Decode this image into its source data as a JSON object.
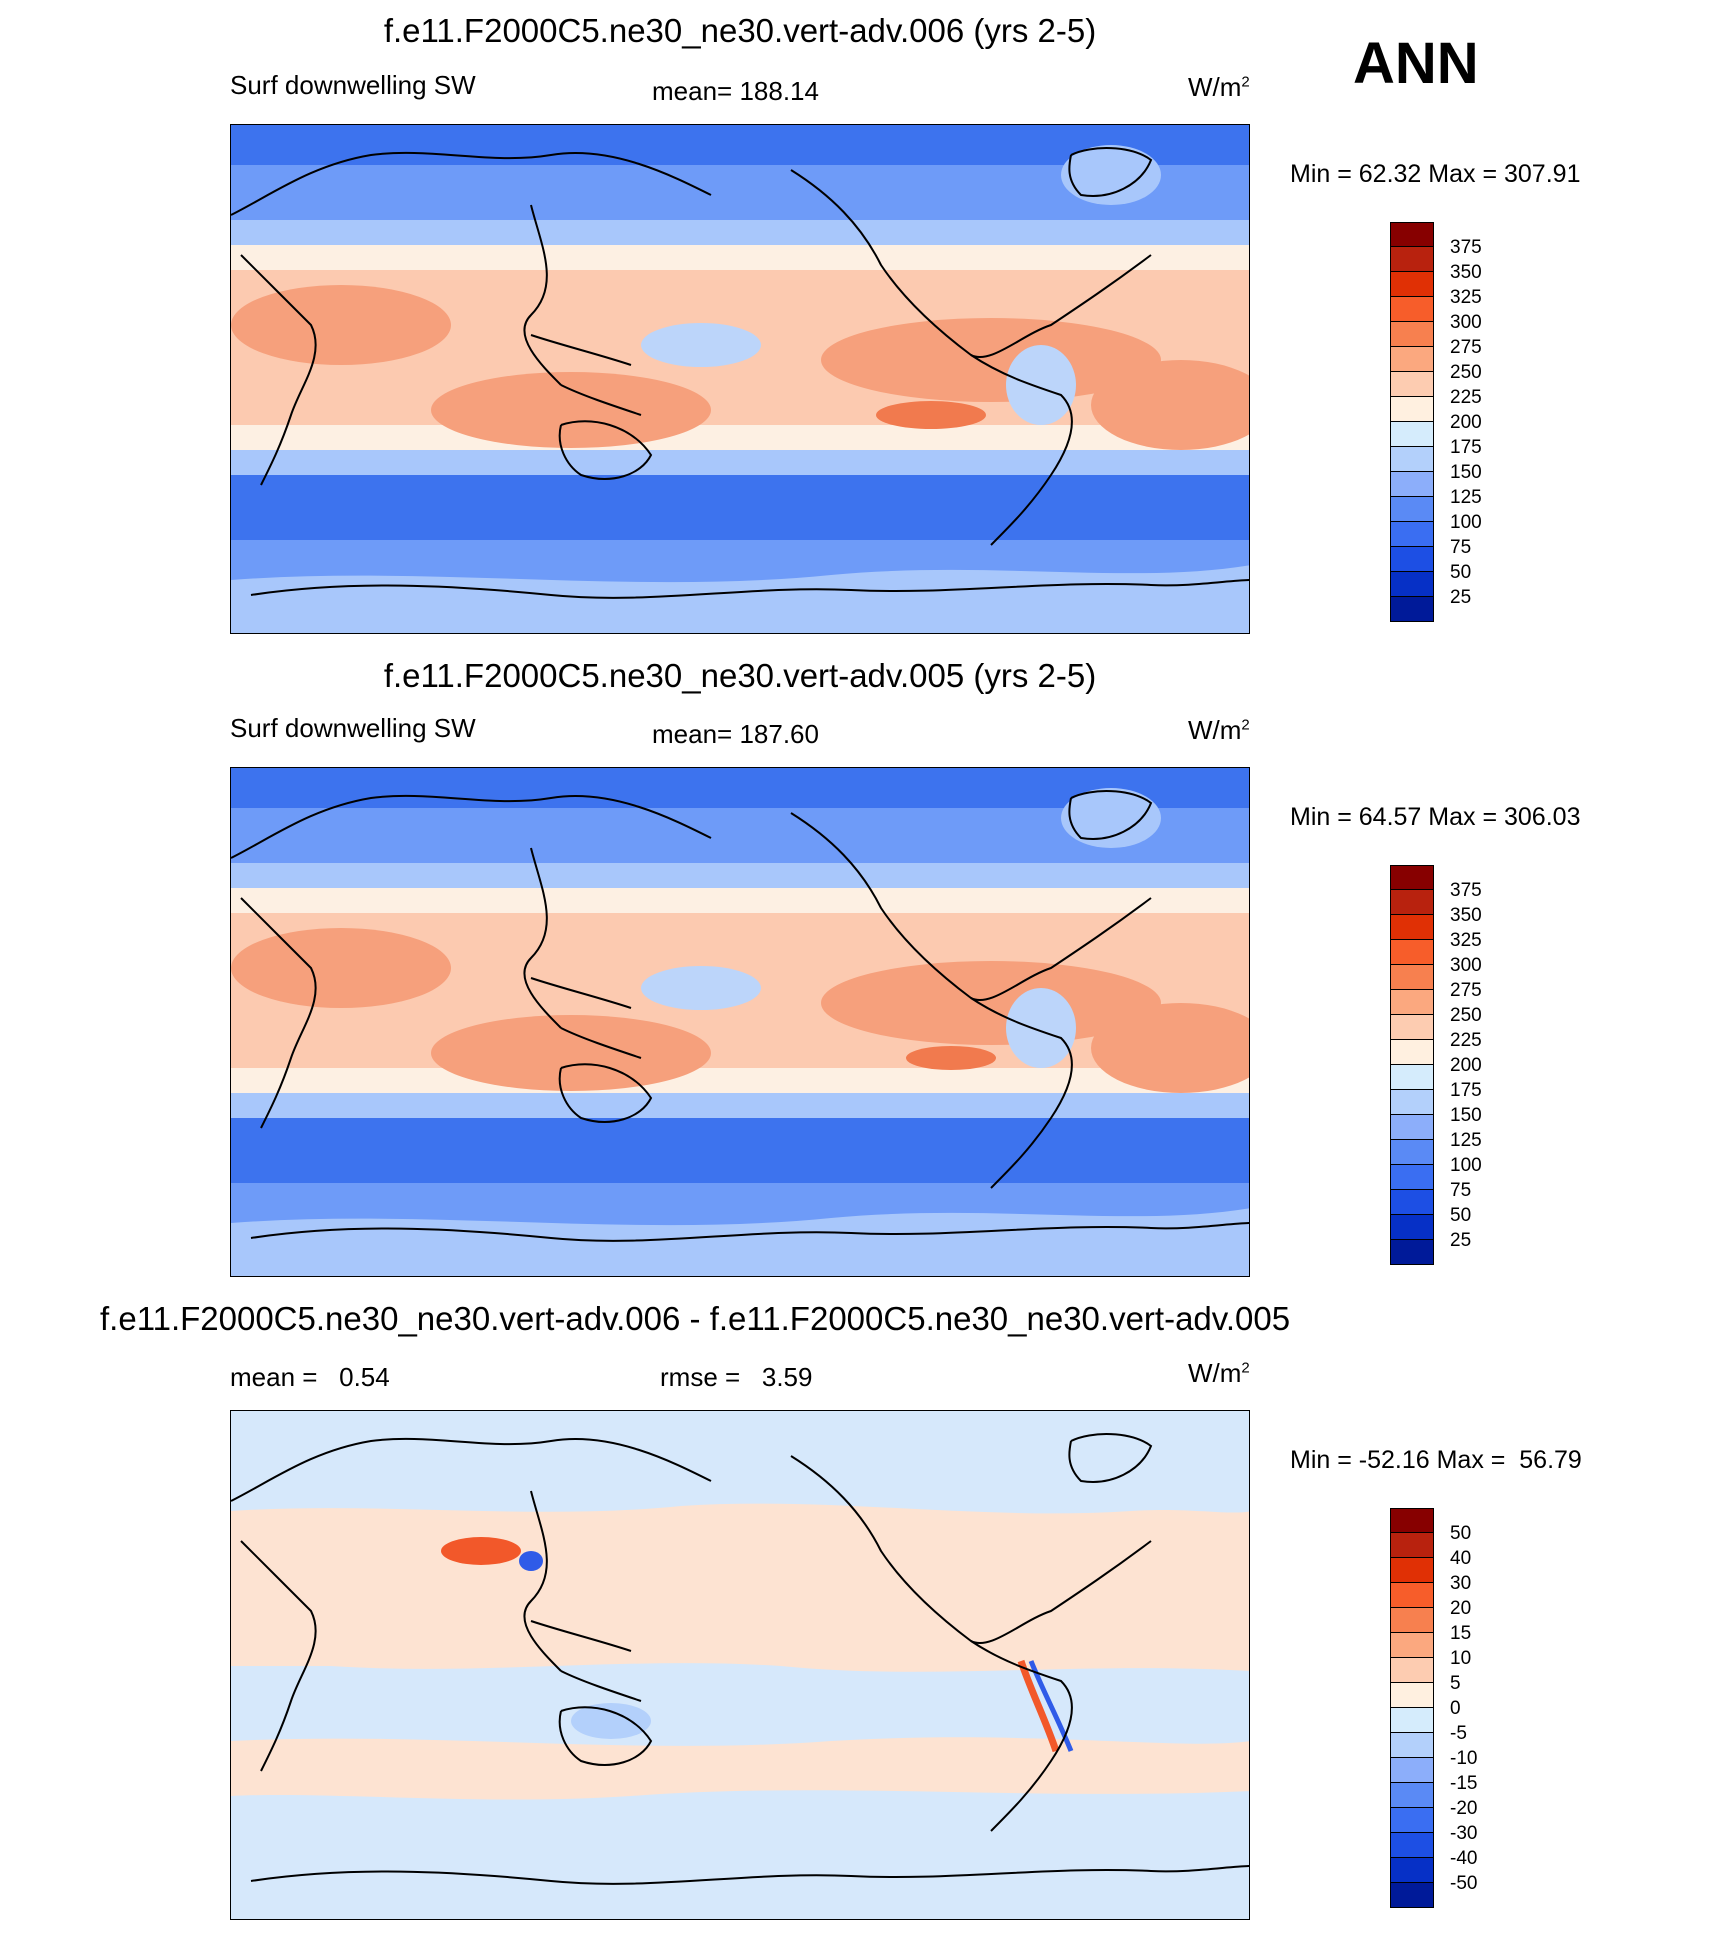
{
  "season": "ANN",
  "panels": [
    {
      "id": "top",
      "title": "f.e11.F2000C5.ne30_ne30.vert-adv.006 (yrs 2-5)",
      "left_label": "Surf downwelling SW",
      "center_label": "mean= 188.14",
      "unit": "W/m",
      "unit_sup": "2",
      "minmax": "Min =  62.32 Max = 307.91",
      "colorbar": {
        "labels": [
          "375",
          "350",
          "325",
          "300",
          "275",
          "250",
          "225",
          "200",
          "175",
          "150",
          "125",
          "100",
          "75",
          "50",
          "25"
        ],
        "colors": [
          "#870000",
          "#b8220e",
          "#e03005",
          "#f75d2a",
          "#f7804f",
          "#fba87f",
          "#fdccb1",
          "#fff0e0",
          "#d5ecfc",
          "#b3d0fb",
          "#8caefa",
          "#5a8af5",
          "#3a6ef2",
          "#1d4fe4",
          "#0630c6",
          "#001a99"
        ]
      },
      "map_colors": {
        "polar": "#3d73ee",
        "midlat": "#6e9bf8",
        "subpolar": "#a8c7fb",
        "transition": "#fdf0e3",
        "subtropic": "#fccab0",
        "tropic_high": "#f6a07c",
        "peak": "#f17a4e",
        "land_low": "#bcd5fa"
      }
    },
    {
      "id": "middle",
      "title": "f.e11.F2000C5.ne30_ne30.vert-adv.005 (yrs 2-5)",
      "left_label": "Surf downwelling SW",
      "center_label": "mean= 187.60",
      "unit": "W/m",
      "unit_sup": "2",
      "minmax": "Min =  64.57 Max = 306.03",
      "colorbar": {
        "labels": [
          "375",
          "350",
          "325",
          "300",
          "275",
          "250",
          "225",
          "200",
          "175",
          "150",
          "125",
          "100",
          "75",
          "50",
          "25"
        ],
        "colors": [
          "#870000",
          "#b8220e",
          "#e03005",
          "#f75d2a",
          "#f7804f",
          "#fba87f",
          "#fdccb1",
          "#fff0e0",
          "#d5ecfc",
          "#b3d0fb",
          "#8caefa",
          "#5a8af5",
          "#3a6ef2",
          "#1d4fe4",
          "#0630c6",
          "#001a99"
        ]
      },
      "map_colors": {
        "polar": "#3d73ee",
        "midlat": "#6e9bf8",
        "subpolar": "#a8c7fb",
        "transition": "#fdf0e3",
        "subtropic": "#fccab0",
        "tropic_high": "#f6a07c",
        "peak": "#f17a4e",
        "land_low": "#bcd5fa"
      }
    },
    {
      "id": "bottom",
      "title": "f.e11.F2000C5.ne30_ne30.vert-adv.006 - f.e11.F2000C5.ne30_ne30.vert-adv.005",
      "left_label": "mean =   0.54",
      "center_label": "rmse =   3.59",
      "unit": "W/m",
      "unit_sup": "2",
      "minmax": "Min = -52.16 Max =  56.79",
      "colorbar": {
        "labels": [
          "50",
          "40",
          "30",
          "20",
          "15",
          "10",
          "5",
          "0",
          "-5",
          "-10",
          "-15",
          "-20",
          "-30",
          "-40",
          "-50"
        ],
        "colors": [
          "#870000",
          "#b8220e",
          "#e03005",
          "#f75d2a",
          "#f7804f",
          "#fba87f",
          "#fdccb1",
          "#fff0e0",
          "#d5ecfc",
          "#b3d0fb",
          "#8caefa",
          "#5a8af5",
          "#3a6ef2",
          "#1d4fe4",
          "#0630c6",
          "#001a99"
        ]
      },
      "map_colors": {
        "pos": "#fde3d2",
        "neg": "#d6e8fb",
        "strong_pos": "#f2582a",
        "strong_neg": "#2f5be8"
      }
    }
  ]
}
